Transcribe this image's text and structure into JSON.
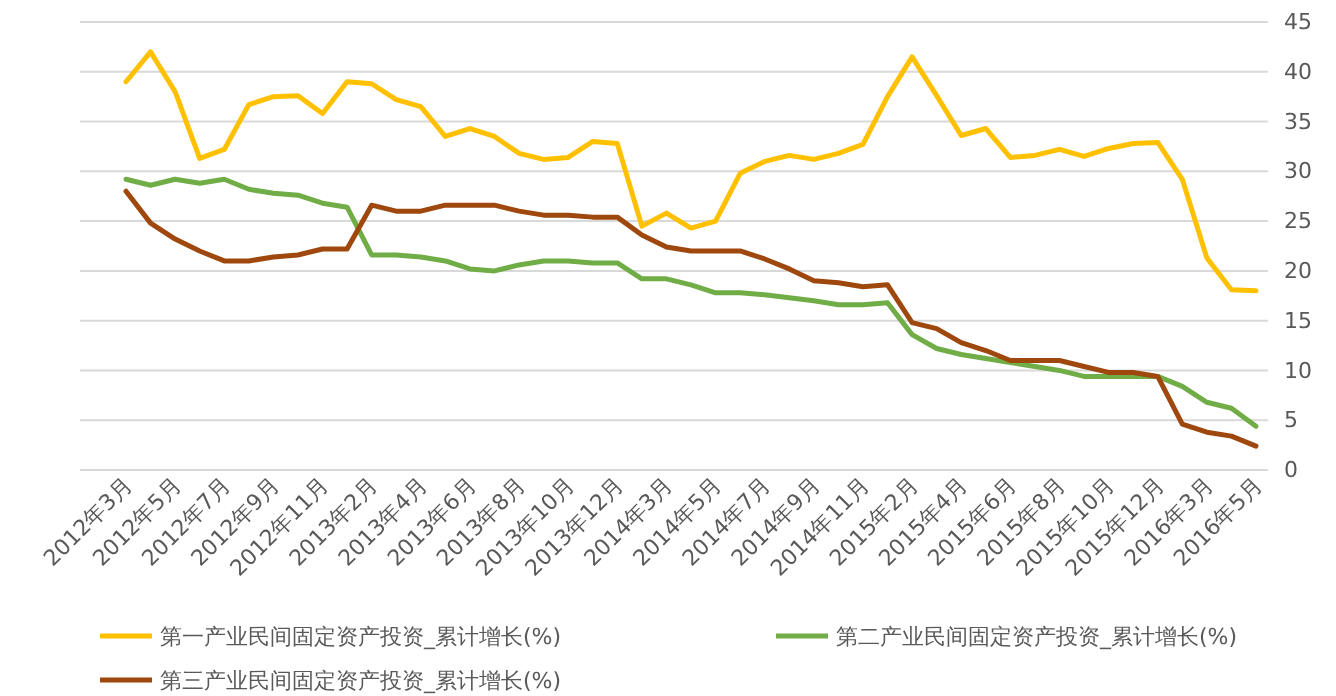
{
  "chart_data": {
    "type": "line",
    "categories": [
      "2012年3月",
      null,
      "2012年5月",
      null,
      "2012年7月",
      null,
      "2012年9月",
      null,
      "2012年11月",
      null,
      "2013年2月",
      null,
      "2013年4月",
      null,
      "2013年6月",
      null,
      "2013年8月",
      null,
      "2013年10月",
      null,
      "2013年12月",
      null,
      "2014年3月",
      null,
      "2014年5月",
      null,
      "2014年7月",
      null,
      "2014年9月",
      null,
      "2014年11月",
      null,
      "2015年2月",
      null,
      "2015年4月",
      null,
      "2015年6月",
      null,
      "2015年8月",
      null,
      "2015年10月",
      null,
      "2015年12月",
      null,
      "2016年3月",
      null,
      "2016年5月"
    ],
    "series": [
      {
        "name": "第一产业民间固定资产投资_累计增长(%)",
        "color": "#ffc000",
        "values": [
          39,
          42,
          38,
          31.3,
          32.2,
          36.7,
          37.5,
          37.6,
          35.8,
          39,
          38.8,
          37.2,
          36.5,
          33.5,
          34.3,
          33.5,
          31.8,
          31.2,
          31.4,
          33,
          32.8,
          24.5,
          25.8,
          24.3,
          25,
          29.8,
          31,
          31.6,
          31.2,
          31.8,
          32.7,
          37.5,
          41.5,
          37.6,
          33.6,
          34.3,
          31.4,
          31.6,
          32.2,
          31.5,
          32.3,
          32.8,
          32.9,
          29.2,
          21.3,
          18.1,
          18
        ]
      },
      {
        "name": "第二产业民间固定资产投资_累计增长(%)",
        "color": "#70ad47",
        "values": [
          29.2,
          28.6,
          29.2,
          28.8,
          29.2,
          28.2,
          27.8,
          27.6,
          26.8,
          26.4,
          21.6,
          21.6,
          21.4,
          21,
          20.2,
          20,
          20.6,
          21,
          21,
          20.8,
          20.8,
          19.2,
          19.2,
          18.6,
          17.8,
          17.8,
          17.6,
          17.3,
          17,
          16.6,
          16.6,
          16.8,
          13.6,
          12.2,
          11.6,
          11.2,
          10.8,
          10.4,
          10,
          9.4,
          9.4,
          9.4,
          9.4,
          8.4,
          6.8,
          6.2,
          4.4
        ]
      },
      {
        "name": "第三产业民间固定资产投资_累计增长(%)",
        "color": "#9e480e",
        "values": [
          28,
          24.8,
          23.2,
          22,
          21,
          21,
          21.4,
          21.6,
          22.2,
          22.2,
          26.6,
          26,
          26,
          26.6,
          26.6,
          26.6,
          26,
          25.6,
          25.6,
          25.4,
          25.4,
          23.6,
          22.4,
          22,
          22,
          22,
          21.2,
          20.2,
          19,
          18.8,
          18.4,
          18.6,
          14.8,
          14.2,
          12.8,
          12,
          11,
          11,
          11,
          10.4,
          9.8,
          9.8,
          9.4,
          4.6,
          3.8,
          3.4,
          2.4
        ]
      }
    ],
    "ylim": [
      0,
      45
    ],
    "yticks": [
      0,
      5,
      10,
      15,
      20,
      25,
      30,
      35,
      40,
      45
    ],
    "grid": "y",
    "legend": "bottom",
    "marker": "none",
    "line_style": "solid"
  }
}
